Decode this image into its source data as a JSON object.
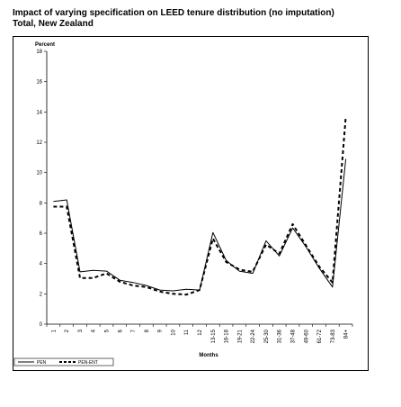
{
  "header": {
    "title_line1": "Impact of varying specification on LEED tenure distribution (no imputation)",
    "title_line2": "Total, New Zealand"
  },
  "chart_data": {
    "type": "line",
    "ylabel": "Percent",
    "xlabel": "Months",
    "ylim": [
      0,
      18
    ],
    "yticks": [
      0,
      2,
      4,
      6,
      8,
      10,
      12,
      14,
      16,
      18
    ],
    "categories": [
      "1",
      "2",
      "3",
      "4",
      "5",
      "6",
      "7",
      "8",
      "9",
      "10",
      "11",
      "12",
      "13-15",
      "16-18",
      "19-21",
      "22-24",
      "25-30",
      "31-36",
      "37-48",
      "49-60",
      "61-72",
      "73-83",
      "84+"
    ],
    "grid": false,
    "legend_position": "bottom-left",
    "series": [
      {
        "name": "PEN",
        "style": "solid",
        "values": [
          8.1,
          8.2,
          3.45,
          3.55,
          3.5,
          2.9,
          2.75,
          2.55,
          2.25,
          2.2,
          2.3,
          2.25,
          6.05,
          4.2,
          3.5,
          3.35,
          5.5,
          4.5,
          6.35,
          5.1,
          3.7,
          2.45,
          10.9
        ]
      },
      {
        "name": "PEN-ENT",
        "style": "dashed",
        "values": [
          7.75,
          7.75,
          3.05,
          3.05,
          3.35,
          2.8,
          2.55,
          2.45,
          2.15,
          2.0,
          1.95,
          2.25,
          5.65,
          4.1,
          3.6,
          3.45,
          5.25,
          4.65,
          6.6,
          5.2,
          3.8,
          2.75,
          13.7
        ]
      }
    ]
  }
}
